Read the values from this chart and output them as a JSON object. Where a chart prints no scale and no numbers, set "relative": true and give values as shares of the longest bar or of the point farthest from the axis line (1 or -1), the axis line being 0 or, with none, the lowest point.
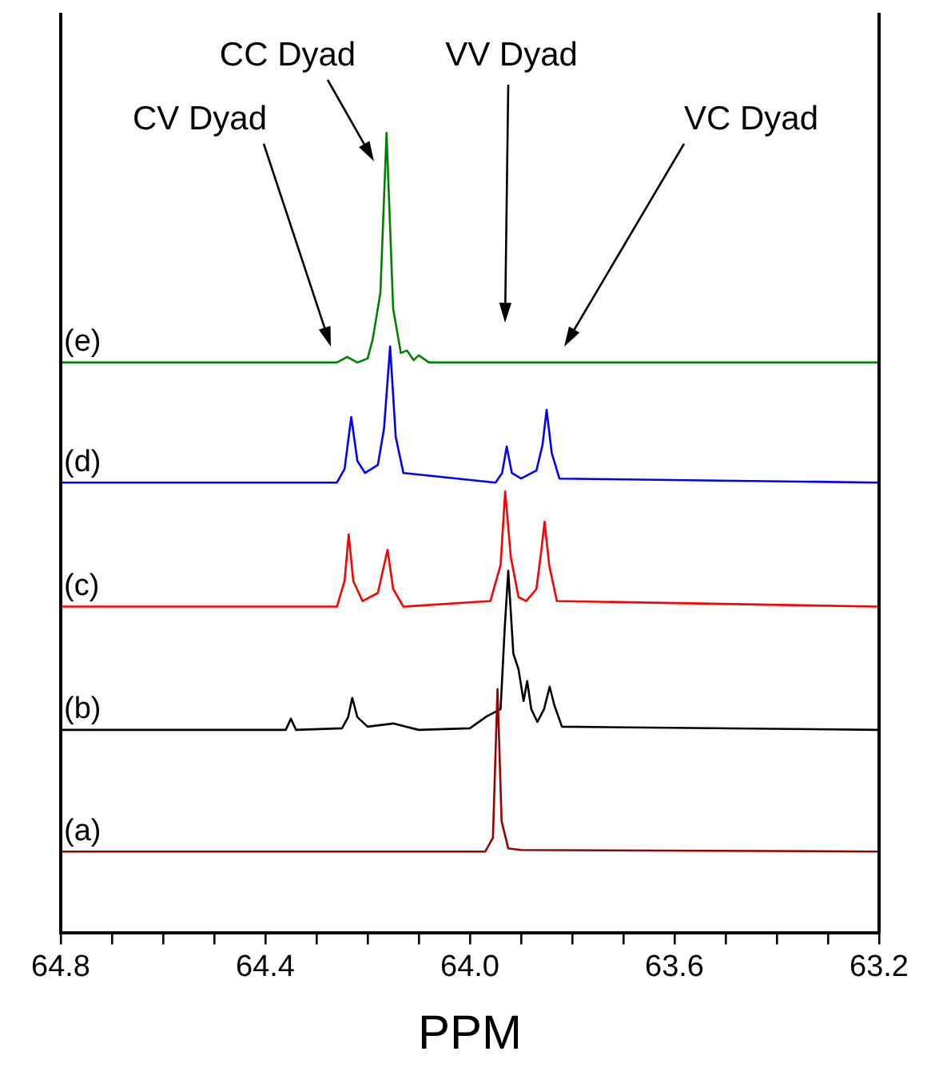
{
  "chart_data": {
    "type": "line",
    "relative": true,
    "xlabel": "PPM",
    "xlim": [
      64.8,
      63.2
    ],
    "xticks": [
      64.8,
      {
        "value": 64.7,
        "label": null
      },
      {
        "value": 64.6,
        "label": null
      },
      {
        "value": 64.5,
        "label": null
      },
      64.4,
      {
        "value": 64.3,
        "label": null
      },
      {
        "value": 64.2,
        "label": null
      },
      {
        "value": 64.1,
        "label": null
      },
      {
        "value": 64,
        "label": "64.0"
      },
      {
        "value": 63.9,
        "label": null
      },
      {
        "value": 63.8,
        "label": null
      },
      {
        "value": 63.7,
        "label": null
      },
      63.6,
      {
        "value": 63.5,
        "label": null
      },
      {
        "value": 63.4,
        "label": null
      },
      {
        "value": 63.3,
        "label": null
      },
      63.2
    ],
    "tick_labels": "x",
    "grid": false,
    "legend": false,
    "marker": "none",
    "line_style": "solid",
    "series": [
      {
        "name": "(a)",
        "color": "#990000",
        "x": [
          64.8,
          63.97,
          63.955,
          63.946,
          63.938,
          63.925,
          63.9,
          63.2
        ],
        "values": [
          0.102,
          0.102,
          0.119,
          0.305,
          0.14,
          0.106,
          0.104,
          0.102
        ]
      },
      {
        "name": "(b)",
        "color": "#000000",
        "x": [
          64.8,
          64.36,
          64.35,
          64.34,
          64.25,
          64.238,
          64.23,
          64.22,
          64.2,
          64.15,
          64.1,
          64.0,
          63.967,
          63.955,
          63.94,
          63.932,
          63.925,
          63.915,
          63.905,
          63.895,
          63.888,
          63.88,
          63.868,
          63.855,
          63.844,
          63.835,
          63.82,
          63.2
        ],
        "values": [
          0.254,
          0.254,
          0.268,
          0.254,
          0.256,
          0.27,
          0.294,
          0.27,
          0.258,
          0.262,
          0.254,
          0.256,
          0.271,
          0.275,
          0.28,
          0.38,
          0.453,
          0.349,
          0.33,
          0.29,
          0.315,
          0.28,
          0.264,
          0.28,
          0.308,
          0.285,
          0.258,
          0.254
        ]
      },
      {
        "name": "(c)",
        "color": "#ff0000",
        "x": [
          64.8,
          64.26,
          64.245,
          64.237,
          64.228,
          64.21,
          64.18,
          64.161,
          64.15,
          64.13,
          63.96,
          63.94,
          63.931,
          63.92,
          63.905,
          63.89,
          63.87,
          63.86,
          63.854,
          63.845,
          63.83,
          63.2
        ],
        "values": [
          0.408,
          0.408,
          0.44,
          0.498,
          0.44,
          0.415,
          0.425,
          0.479,
          0.43,
          0.408,
          0.415,
          0.46,
          0.552,
          0.47,
          0.42,
          0.415,
          0.43,
          0.48,
          0.514,
          0.46,
          0.415,
          0.408
        ]
      },
      {
        "name": "(d)",
        "color": "#0000ff",
        "x": [
          64.8,
          64.26,
          64.245,
          64.232,
          64.22,
          64.205,
          64.18,
          64.168,
          64.156,
          64.145,
          64.13,
          63.95,
          63.937,
          63.928,
          63.918,
          63.9,
          63.87,
          63.858,
          63.85,
          63.84,
          63.825,
          63.2
        ],
        "values": [
          0.563,
          0.563,
          0.58,
          0.645,
          0.59,
          0.575,
          0.585,
          0.63,
          0.733,
          0.62,
          0.575,
          0.563,
          0.575,
          0.608,
          0.575,
          0.568,
          0.578,
          0.61,
          0.654,
          0.6,
          0.568,
          0.563
        ]
      },
      {
        "name": "(e)",
        "color": "#008000",
        "x": [
          64.8,
          64.26,
          64.24,
          64.22,
          64.2,
          64.19,
          64.175,
          64.163,
          64.15,
          64.135,
          64.123,
          64.11,
          64.1,
          64.08,
          63.2
        ],
        "values": [
          0.713,
          0.713,
          0.72,
          0.713,
          0.718,
          0.742,
          0.8,
          1.0,
          0.78,
          0.725,
          0.728,
          0.716,
          0.722,
          0.713,
          0.713
        ]
      }
    ],
    "annotations": [
      "CV Dyad",
      "CC Dyad",
      "VV Dyad",
      "VC Dyad"
    ]
  }
}
